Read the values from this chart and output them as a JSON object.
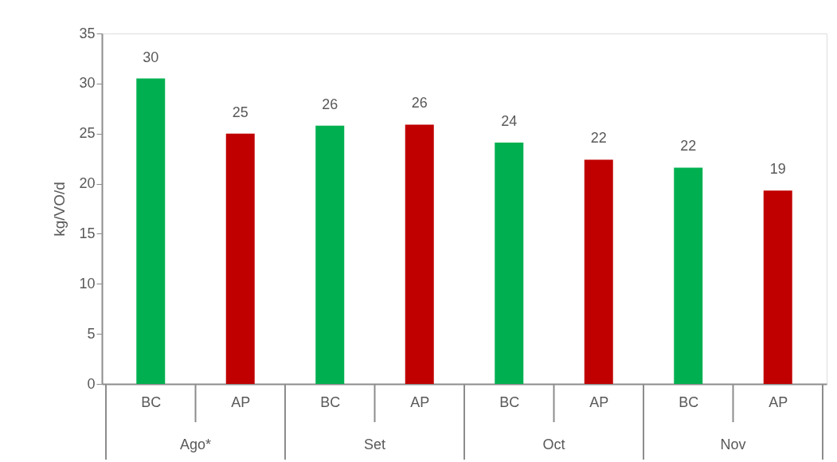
{
  "chart_data": {
    "type": "bar",
    "ylabel": "kg/VO/d",
    "categories": [
      "BC",
      "AP",
      "BC",
      "AP",
      "BC",
      "AP",
      "BC",
      "AP"
    ],
    "values": [
      30.5,
      25.0,
      25.8,
      25.9,
      24.1,
      22.4,
      21.6,
      19.3
    ],
    "colors": [
      "#00b050",
      "#c00000",
      "#00b050",
      "#c00000",
      "#00b050",
      "#c00000",
      "#00b050",
      "#c00000"
    ],
    "value_labels": [
      "30",
      "25",
      "26",
      "26",
      "24",
      "22",
      "22",
      "19"
    ],
    "annotations": [
      "Ago*",
      "Set",
      "Oct",
      "Nov"
    ],
    "ylim": [
      0,
      35
    ],
    "yticks": [
      0,
      5,
      10,
      15,
      20,
      25,
      30,
      35
    ],
    "grid": false
  }
}
